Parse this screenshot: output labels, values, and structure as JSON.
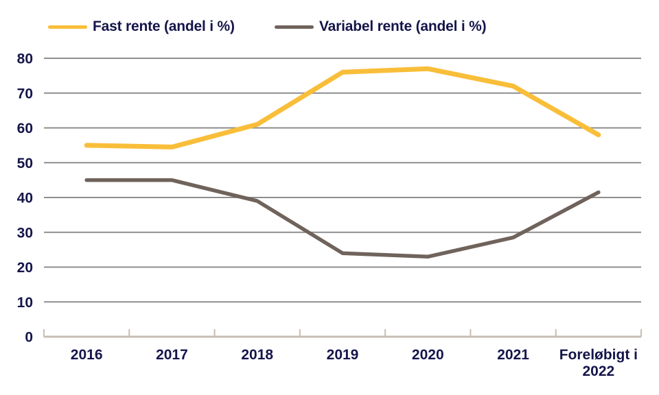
{
  "chart_data": {
    "type": "line",
    "title": "",
    "xlabel": "",
    "ylabel": "",
    "categories": [
      "2016",
      "2017",
      "2018",
      "2019",
      "2020",
      "2021",
      "Foreløbigt i 2022"
    ],
    "x_tick_lines": [
      [
        "2016"
      ],
      [
        "2017"
      ],
      [
        "2018"
      ],
      [
        "2019"
      ],
      [
        "2020"
      ],
      [
        "2021"
      ],
      [
        "Foreløbigt i",
        "2022"
      ]
    ],
    "series": [
      {
        "name": "Fast rente (andel i %)",
        "values": [
          55,
          54.5,
          61,
          76,
          77,
          72,
          58
        ],
        "color": "#F9BE39"
      },
      {
        "name": "Variabel rente (andel i %)",
        "values": [
          45,
          45,
          39,
          24,
          23,
          28.5,
          41.5
        ],
        "color": "#6F635B"
      }
    ],
    "ylim": [
      0,
      80
    ],
    "yticks": [
      0,
      10,
      20,
      30,
      40,
      50,
      60,
      70,
      80
    ],
    "grid": true,
    "legend_position": "top-left",
    "colors": {
      "grid": "#8E8E8E",
      "axis": "#C7BEB2",
      "text": "#15154B",
      "background": "#FFFFFF"
    }
  }
}
